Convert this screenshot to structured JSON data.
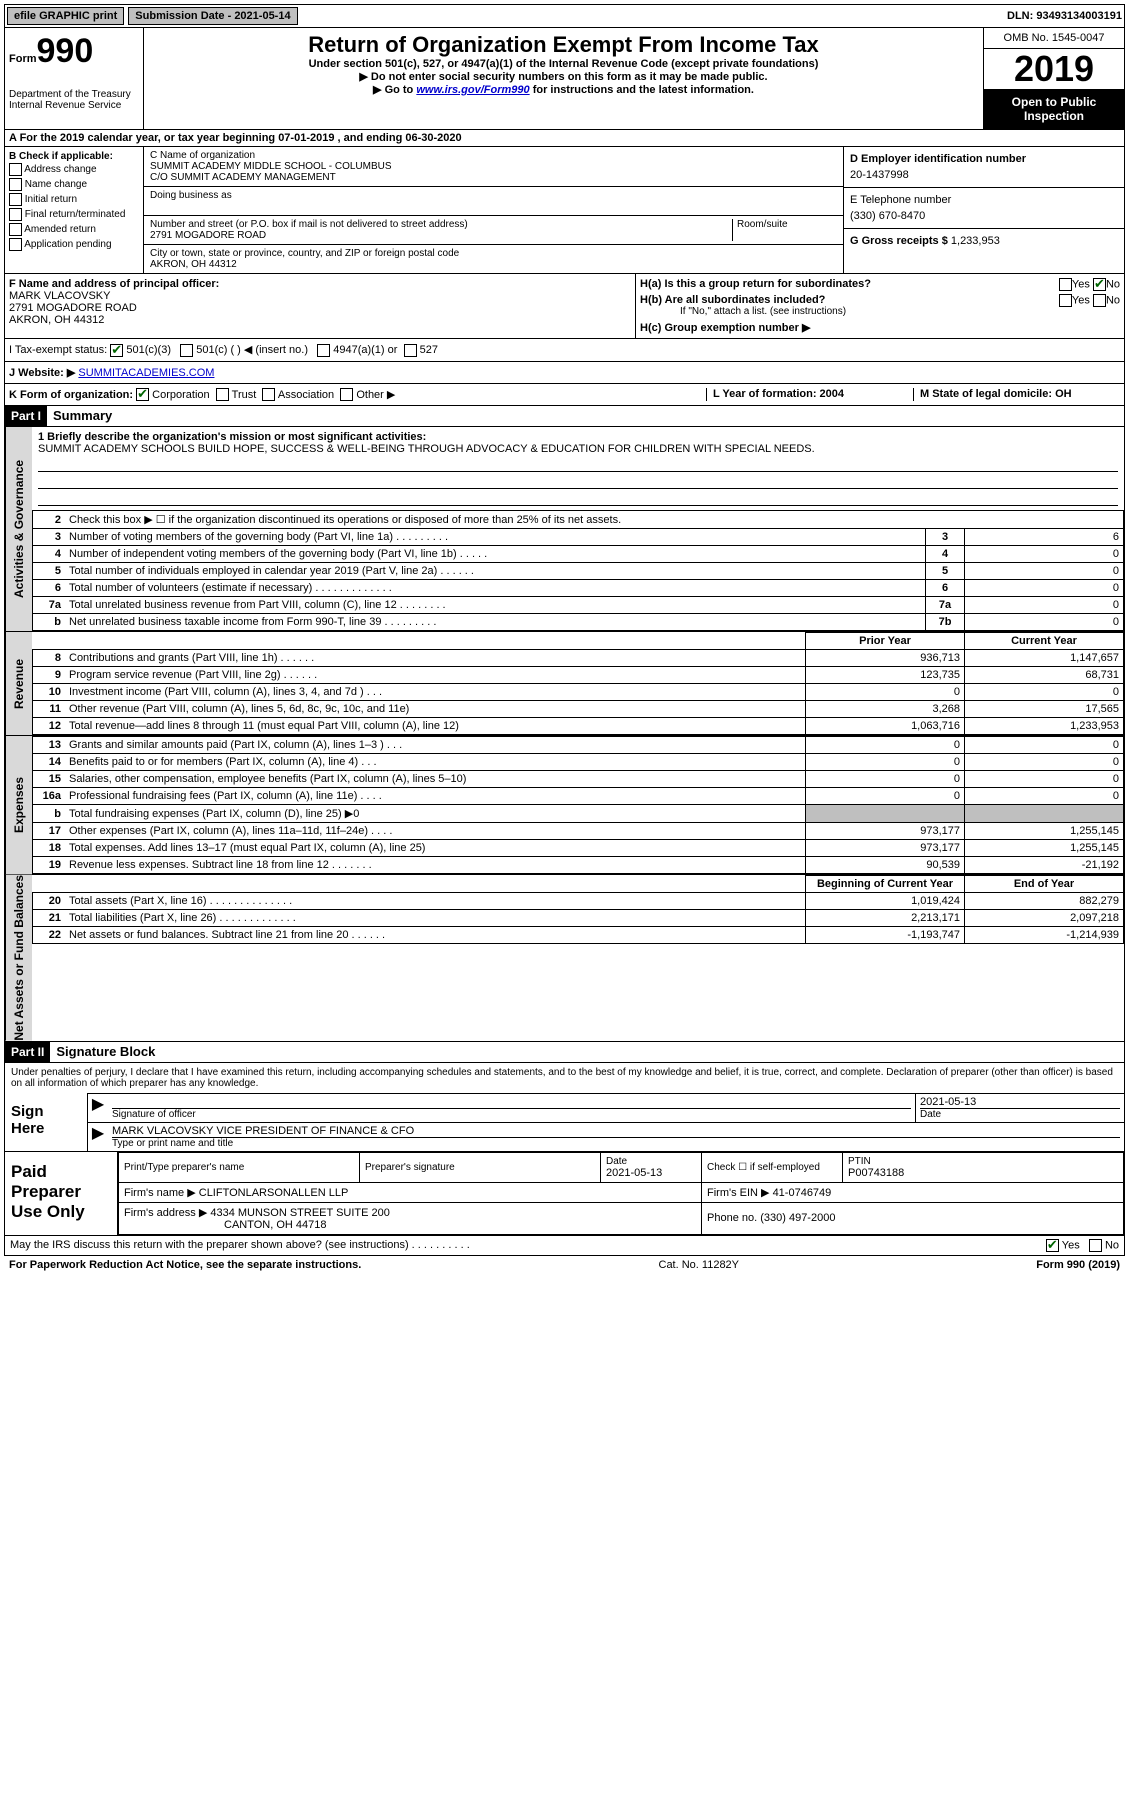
{
  "topbar": {
    "efile_label": "efile GRAPHIC print",
    "submission_label": "Submission Date - 2021-05-14",
    "dln_label": "DLN: 93493134003191"
  },
  "header": {
    "form_label": "Form",
    "form_number": "990",
    "dept": "Department of the Treasury\nInternal Revenue Service",
    "title": "Return of Organization Exempt From Income Tax",
    "subtitle": "Under section 501(c), 527, or 4947(a)(1) of the Internal Revenue Code (except private foundations)",
    "note1": "▶ Do not enter social security numbers on this form as it may be made public.",
    "note2_pre": "▶ Go to ",
    "note2_link": "www.irs.gov/Form990",
    "note2_post": " for instructions and the latest information.",
    "omb": "OMB No. 1545-0047",
    "year": "2019",
    "open_public": "Open to Public Inspection"
  },
  "row_a": "A For the 2019 calendar year, or tax year beginning 07-01-2019   , and ending 06-30-2020",
  "b_left": {
    "title": "B Check if applicable:",
    "items": [
      "Address change",
      "Name change",
      "Initial return",
      "Final return/terminated",
      "Amended return",
      "Application pending"
    ]
  },
  "b_mid": {
    "c_label": "C Name of organization",
    "c_name": "SUMMIT ACADEMY MIDDLE SCHOOL - COLUMBUS",
    "c_co": "C/O SUMMIT ACADEMY MANAGEMENT",
    "dba_label": "Doing business as",
    "addr_label": "Number and street (or P.O. box if mail is not delivered to street address)",
    "addr_room": "Room/suite",
    "addr": "2791 MOGADORE ROAD",
    "city_label": "City or town, state or province, country, and ZIP or foreign postal code",
    "city": "AKRON, OH  44312"
  },
  "b_right": {
    "d_label": "D Employer identification number",
    "d_val": "20-1437998",
    "e_label": "E Telephone number",
    "e_val": "(330) 670-8470",
    "g_label": "G Gross receipts $",
    "g_val": "1,233,953"
  },
  "f_block": {
    "label": "F  Name and address of principal officer:",
    "name": "MARK VLACOVSKY",
    "addr": "2791 MOGADORE ROAD",
    "city": "AKRON, OH  44312"
  },
  "h_block": {
    "ha": "H(a)  Is this a group return for subordinates?",
    "ha_yes": "Yes",
    "ha_no": "No",
    "hb": "H(b)  Are all subordinates included?",
    "hb_note": "If \"No,\" attach a list. (see instructions)",
    "hc": "H(c)  Group exemption number ▶"
  },
  "tax_status": {
    "label": "I  Tax-exempt status:",
    "o1": "501(c)(3)",
    "o2": "501(c) (   ) ◀ (insert no.)",
    "o3": "4947(a)(1) or",
    "o4": "527"
  },
  "website": {
    "label": "J  Website: ▶",
    "url": "SUMMITACADEMIES.COM"
  },
  "k_row": {
    "k": "K Form of organization:",
    "k_opts": [
      "Corporation",
      "Trust",
      "Association",
      "Other ▶"
    ],
    "l": "L Year of formation: 2004",
    "m": "M State of legal domicile: OH"
  },
  "parts": {
    "p1": "Part I",
    "p1_title": "Summary",
    "p2": "Part II",
    "p2_title": "Signature Block"
  },
  "mission": {
    "label": "1  Briefly describe the organization's mission or most significant activities:",
    "text": "SUMMIT ACADEMY SCHOOLS BUILD HOPE, SUCCESS & WELL-BEING THROUGH ADVOCACY & EDUCATION FOR CHILDREN WITH SPECIAL NEEDS."
  },
  "gov_rows": [
    {
      "n": "2",
      "d": "Check this box ▶ ☐  if the organization discontinued its operations or disposed of more than 25% of its net assets.",
      "c": "",
      "v": ""
    },
    {
      "n": "3",
      "d": "Number of voting members of the governing body (Part VI, line 1a)  .   .   .   .   .   .   .   .   .",
      "c": "3",
      "v": "6"
    },
    {
      "n": "4",
      "d": "Number of independent voting members of the governing body (Part VI, line 1b)  .   .   .   .   .",
      "c": "4",
      "v": "0"
    },
    {
      "n": "5",
      "d": "Total number of individuals employed in calendar year 2019 (Part V, line 2a)  .   .   .   .   .   .",
      "c": "5",
      "v": "0"
    },
    {
      "n": "6",
      "d": "Total number of volunteers (estimate if necessary)   .   .   .   .   .   .   .   .   .   .   .   .   .",
      "c": "6",
      "v": "0"
    },
    {
      "n": "7a",
      "d": "Total unrelated business revenue from Part VIII, column (C), line 12   .   .   .   .   .   .   .   .",
      "c": "7a",
      "v": "0"
    },
    {
      "n": "b",
      "d": "Net unrelated business taxable income from Form 990-T, line 39   .   .   .   .   .   .   .   .   .",
      "c": "7b",
      "v": "0"
    }
  ],
  "pycy_header": {
    "py": "Prior Year",
    "cy": "Current Year"
  },
  "revenue_rows": [
    {
      "n": "8",
      "d": "Contributions and grants (Part VIII, line 1h)   .   .   .   .   .   .",
      "py": "936,713",
      "cy": "1,147,657"
    },
    {
      "n": "9",
      "d": "Program service revenue (Part VIII, line 2g)   .   .   .   .   .   .",
      "py": "123,735",
      "cy": "68,731"
    },
    {
      "n": "10",
      "d": "Investment income (Part VIII, column (A), lines 3, 4, and 7d )   .   .   .",
      "py": "0",
      "cy": "0"
    },
    {
      "n": "11",
      "d": "Other revenue (Part VIII, column (A), lines 5, 6d, 8c, 9c, 10c, and 11e)",
      "py": "3,268",
      "cy": "17,565"
    },
    {
      "n": "12",
      "d": "Total revenue—add lines 8 through 11 (must equal Part VIII, column (A), line 12)",
      "py": "1,063,716",
      "cy": "1,233,953"
    }
  ],
  "expense_rows": [
    {
      "n": "13",
      "d": "Grants and similar amounts paid (Part IX, column (A), lines 1–3 )   .   .   .",
      "py": "0",
      "cy": "0"
    },
    {
      "n": "14",
      "d": "Benefits paid to or for members (Part IX, column (A), line 4)   .   .   .",
      "py": "0",
      "cy": "0"
    },
    {
      "n": "15",
      "d": "Salaries, other compensation, employee benefits (Part IX, column (A), lines 5–10)",
      "py": "0",
      "cy": "0"
    },
    {
      "n": "16a",
      "d": "Professional fundraising fees (Part IX, column (A), line 11e)   .   .   .   .",
      "py": "0",
      "cy": "0"
    },
    {
      "n": "b",
      "d": "Total fundraising expenses (Part IX, column (D), line 25) ▶0",
      "py": "",
      "cy": "",
      "shaded": true
    },
    {
      "n": "17",
      "d": "Other expenses (Part IX, column (A), lines 11a–11d, 11f–24e)   .   .   .   .",
      "py": "973,177",
      "cy": "1,255,145"
    },
    {
      "n": "18",
      "d": "Total expenses. Add lines 13–17 (must equal Part IX, column (A), line 25)",
      "py": "973,177",
      "cy": "1,255,145"
    },
    {
      "n": "19",
      "d": "Revenue less expenses. Subtract line 18 from line 12  .   .   .   .   .   .   .",
      "py": "90,539",
      "cy": "-21,192"
    }
  ],
  "net_header": {
    "b": "Beginning of Current Year",
    "e": "End of Year"
  },
  "net_rows": [
    {
      "n": "20",
      "d": "Total assets (Part X, line 16)  .   .   .   .   .   .   .   .   .   .   .   .   .   .",
      "py": "1,019,424",
      "cy": "882,279"
    },
    {
      "n": "21",
      "d": "Total liabilities (Part X, line 26)  .   .   .   .   .   .   .   .   .   .   .   .   .",
      "py": "2,213,171",
      "cy": "2,097,218"
    },
    {
      "n": "22",
      "d": "Net assets or fund balances. Subtract line 21 from line 20  .   .   .   .   .   .",
      "py": "-1,193,747",
      "cy": "-1,214,939"
    }
  ],
  "vtabs": {
    "gov": "Activities & Governance",
    "rev": "Revenue",
    "exp": "Expenses",
    "net": "Net Assets or Fund Balances"
  },
  "sig": {
    "penalty": "Under penalties of perjury, I declare that I have examined this return, including accompanying schedules and statements, and to the best of my knowledge and belief, it is true, correct, and complete. Declaration of preparer (other than officer) is based on all information of which preparer has any knowledge.",
    "sign_here": "Sign Here",
    "sig_officer": "Signature of officer",
    "date": "2021-05-13",
    "date_label": "Date",
    "name_title": "MARK VLACOVSKY  VICE PRESIDENT OF FINANCE & CFO",
    "type_label": "Type or print name and title"
  },
  "paid": {
    "label": "Paid Preparer Use Only",
    "h_name": "Print/Type preparer's name",
    "h_sig": "Preparer's signature",
    "h_date": "Date",
    "date": "2021-05-13",
    "check_label": "Check ☐ if self-employed",
    "ptin_label": "PTIN",
    "ptin": "P00743188",
    "firm_name_label": "Firm's name    ▶",
    "firm_name": "CLIFTONLARSONALLEN LLP",
    "firm_ein_label": "Firm's EIN ▶",
    "firm_ein": "41-0746749",
    "firm_addr_label": "Firm's address ▶",
    "firm_addr": "4334 MUNSON STREET SUITE 200",
    "firm_city": "CANTON, OH  44718",
    "phone_label": "Phone no.",
    "phone": "(330) 497-2000"
  },
  "footer": {
    "discuss": "May the IRS discuss this return with the preparer shown above? (see instructions)   .   .   .   .   .   .   .   .   .   .",
    "yes": "Yes",
    "no": "No",
    "pra": "For Paperwork Reduction Act Notice, see the separate instructions.",
    "cat": "Cat. No. 11282Y",
    "form": "Form 990 (2019)"
  },
  "colors": {
    "black": "#000000",
    "white": "#ffffff",
    "grey_btn": "#bfbfbf",
    "grey_tab": "#d9d9d9",
    "link": "#0000cc",
    "check": "#006400"
  }
}
